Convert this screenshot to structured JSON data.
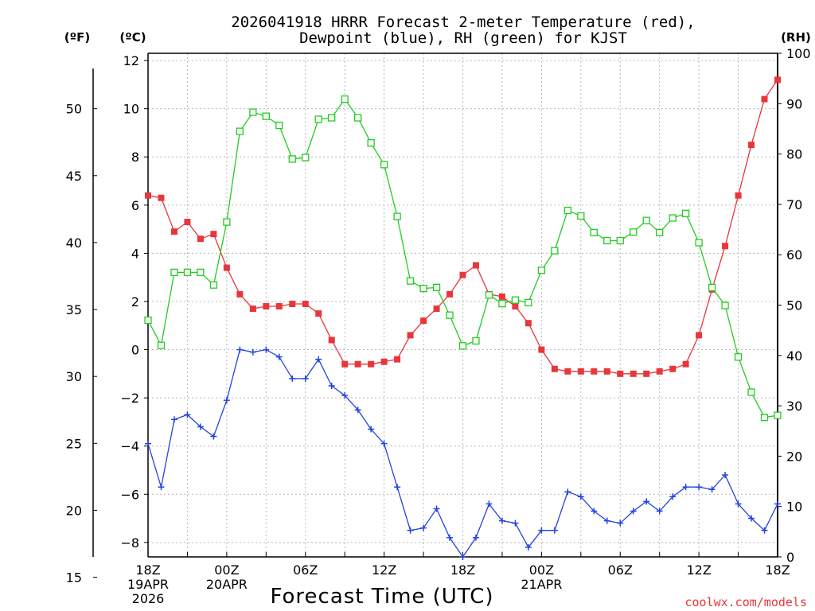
{
  "chart_data": {
    "type": "line",
    "title_line1": "2026041918 HRRR Forecast 2-meter Temperature (red),",
    "title_line2": "Dewpoint (blue), RH (green) for KJST",
    "unit_f": "(ºF)",
    "unit_c": "(ºC)",
    "unit_rh": "(RH)",
    "xlabel": "Forecast Time (UTC)",
    "credit": "coolwx.com/models",
    "x_hours": [
      0,
      1,
      2,
      3,
      4,
      5,
      6,
      7,
      8,
      9,
      10,
      11,
      12,
      13,
      14,
      15,
      16,
      17,
      18,
      19,
      20,
      21,
      22,
      23,
      24,
      25,
      26,
      27,
      28,
      29,
      30,
      31,
      32,
      33,
      34,
      35,
      36,
      37,
      38,
      39,
      40,
      41,
      42,
      43,
      44,
      45,
      46,
      47,
      48
    ],
    "xlim": [
      0,
      48
    ],
    "ylim_c": [
      -8.6,
      12.3
    ],
    "ylim_rh": [
      0,
      100
    ],
    "x_ticks": [
      {
        "hour": 0,
        "lines": [
          "18Z",
          "19APR",
          "2026"
        ]
      },
      {
        "hour": 6,
        "lines": [
          "00Z",
          "20APR"
        ]
      },
      {
        "hour": 12,
        "lines": [
          "06Z"
        ]
      },
      {
        "hour": 18,
        "lines": [
          "12Z"
        ]
      },
      {
        "hour": 24,
        "lines": [
          "18Z"
        ]
      },
      {
        "hour": 30,
        "lines": [
          "00Z",
          "21APR"
        ]
      },
      {
        "hour": 36,
        "lines": [
          "06Z"
        ]
      },
      {
        "hour": 42,
        "lines": [
          "12Z"
        ]
      },
      {
        "hour": 48,
        "lines": [
          "18Z"
        ]
      }
    ],
    "c_ticks": [
      -8,
      -6,
      -4,
      -2,
      0,
      2,
      4,
      6,
      8,
      10,
      12
    ],
    "f_ticks": [
      15,
      20,
      25,
      30,
      35,
      40,
      45,
      50
    ],
    "rh_ticks": [
      0,
      10,
      20,
      30,
      40,
      50,
      60,
      70,
      80,
      90,
      100
    ],
    "series": [
      {
        "name": "Temperature",
        "unit": "C",
        "color": "#e8363b",
        "marker": "filled-square",
        "values": [
          6.4,
          6.3,
          4.9,
          5.3,
          4.6,
          4.8,
          3.4,
          2.3,
          1.7,
          1.8,
          1.8,
          1.9,
          1.9,
          1.5,
          0.4,
          -0.6,
          -0.6,
          -0.6,
          -0.5,
          -0.4,
          0.6,
          1.2,
          1.7,
          2.3,
          3.1,
          3.5,
          2.3,
          2.2,
          1.8,
          1.1,
          0.0,
          -0.8,
          -0.9,
          -0.9,
          -0.9,
          -0.9,
          -1.0,
          -1.0,
          -1.0,
          -0.9,
          -0.8,
          -0.6,
          0.6,
          2.5,
          4.3,
          6.4,
          8.5,
          10.4,
          11.2
        ]
      },
      {
        "name": "Dewpoint",
        "unit": "C",
        "color": "#2244dd",
        "marker": "plus",
        "values": [
          -3.9,
          -5.7,
          -2.9,
          -2.7,
          -3.2,
          -3.6,
          -2.1,
          0.0,
          -0.1,
          0.0,
          -0.3,
          -1.2,
          -1.2,
          -0.4,
          -1.5,
          -1.9,
          -2.5,
          -3.3,
          -3.9,
          -5.7,
          -7.5,
          -7.4,
          -6.6,
          -7.8,
          -8.6,
          -7.8,
          -6.4,
          -7.1,
          -7.2,
          -8.2,
          -7.5,
          -7.5,
          -5.9,
          -6.1,
          -6.7,
          -7.1,
          -7.2,
          -6.7,
          -6.3,
          -6.7,
          -6.1,
          -5.7,
          -5.7,
          -5.8,
          -5.2,
          -6.4,
          -7.0,
          -7.5,
          -6.4
        ]
      },
      {
        "name": "RH",
        "unit": "%",
        "color": "#22cc22",
        "marker": "open-square",
        "values": [
          47,
          42,
          56.5,
          56.5,
          56.5,
          54,
          66.5,
          84.5,
          88.3,
          87.5,
          85.7,
          79,
          79.3,
          86.9,
          87.2,
          90.9,
          87.2,
          82.2,
          77.9,
          67.6,
          54.8,
          53.3,
          53.5,
          48,
          41.9,
          42.9,
          52,
          50.3,
          51,
          50.5,
          56.9,
          60.8,
          68.8,
          67.7,
          64.4,
          62.8,
          62.8,
          64.5,
          66.8,
          64.4,
          67.3,
          68.2,
          62.4,
          53.5,
          49.9,
          39.7,
          32.7,
          27.7,
          28.1
        ]
      }
    ]
  }
}
